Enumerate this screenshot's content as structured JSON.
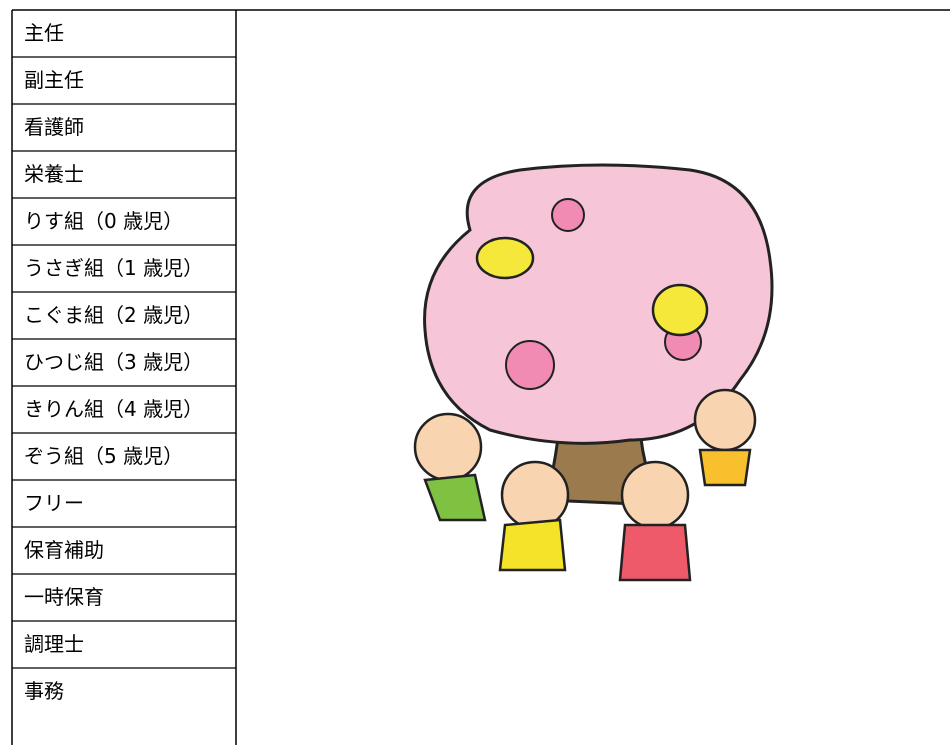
{
  "table": {
    "rows": [
      "主任",
      "副主任",
      "看護師",
      "栄養士",
      "りす組（0 歳児）",
      "うさぎ組（1 歳児）",
      "こぐま組（2 歳児）",
      "ひつじ組（3 歳児）",
      "きりん組（4 歳児）",
      "ぞう組（5 歳児）",
      "フリー",
      "保育補助",
      "一時保育",
      "調理士",
      "事務"
    ]
  }
}
